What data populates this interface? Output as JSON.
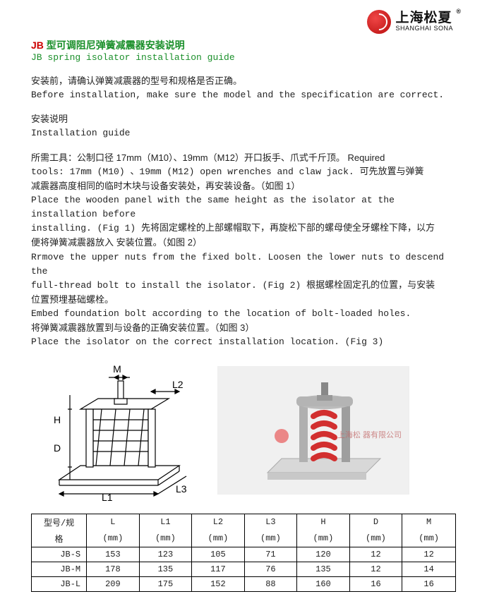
{
  "brand": {
    "cn": "上海松夏",
    "reg": "®",
    "en": "SHANGHAI SONA"
  },
  "title": {
    "jb": "JB",
    "cn_rest": " 型可调阻尼弹簧减震器安装说明",
    "en": "JB spring isolator installation guide"
  },
  "para1": {
    "cn": "安装前，请确认弹簧减震器的型号和规格是否正确。",
    "en": "Before installation, make sure the model and the specification are correct."
  },
  "heading2": {
    "cn": "安装说明",
    "en": "Installation guide"
  },
  "para2": {
    "line1_cn": "所需工具：公制口径 17mm（M10）、19mm（M12）开口扳手、爪式千斤顶。 Required",
    "line2": "tools: 17mm (M10) 、19mm (M12) open wrenches and claw jack. 可先放置与弹簧",
    "line3": "减震器高度相同的临时木块与设备安装处，再安装设备。（如图 1）",
    "line4": "Place the wooden panel with the same height as the isolator at the installation before",
    "line5": "installing. (Fig 1) 先将固定螺栓的上部螺帽取下，再旋松下部的螺母使全牙螺栓下降，以方",
    "line6": "便将弹簧减震器放入 安装位置。（如图 2）",
    "line7": "Rrmove the upper nuts from the fixed bolt. Loosen the lower nuts to descend the",
    "line8": "full-thread bolt to install the isolator. (Fig 2) 根据螺栓固定孔的位置，与安装",
    "line9": "位置预埋基础螺栓。",
    "line10": "Embed foundation bolt according to the location of bolt-loaded holes.",
    "line11": "将弹簧减震器放置到与设备的正确安装位置。（如图 3）",
    "line12": "Place the isolator on the correct installation location. (Fig 3)"
  },
  "diagram_labels": {
    "M": "M",
    "L2": "L2",
    "H": "H",
    "D": "D",
    "L1": "L1",
    "L3": "L3"
  },
  "photo_watermark": "上海松        器有限公司",
  "table": {
    "headers_top": [
      "型号/规",
      "L",
      "L1",
      "L2",
      "L3",
      "H",
      "D",
      "M"
    ],
    "headers_bot": [
      "格",
      "(mm)",
      "(mm)",
      "(mm)",
      "(mm)",
      "(mm)",
      "(mm)",
      "(mm)"
    ],
    "rows": [
      [
        "JB-S",
        "153",
        "123",
        "105",
        "71",
        "120",
        "12",
        "12"
      ],
      [
        "JB-M",
        "178",
        "135",
        "117",
        "76",
        "135",
        "12",
        "14"
      ],
      [
        "JB-L",
        "209",
        "175",
        "152",
        "88",
        "160",
        "16",
        "16"
      ]
    ],
    "col_widths_pct": [
      13,
      12.4,
      12.4,
      12.4,
      12.4,
      12.4,
      12.4,
      12.6
    ]
  },
  "colors": {
    "green": "#1a8f2a",
    "red": "#c00000",
    "brand_red_light": "#f04646",
    "brand_red_dark": "#c81e1e",
    "text": "#222222",
    "border": "#000000",
    "photo_bg": "#f5f5f5",
    "photo_spring": "#d22f2f",
    "photo_metal": "#b8b8b8",
    "photo_base": "#d8d8d8"
  }
}
